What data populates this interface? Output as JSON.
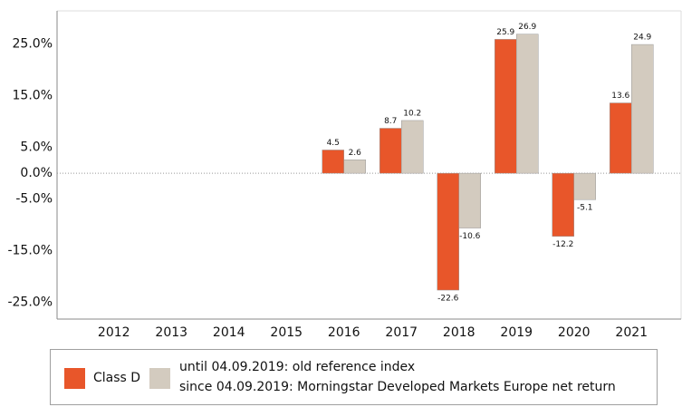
{
  "chart_data": {
    "type": "bar",
    "categories": [
      "2012",
      "2013",
      "2014",
      "2015",
      "2016",
      "2017",
      "2018",
      "2019",
      "2020",
      "2021"
    ],
    "series": [
      {
        "name": "Class D",
        "color": "#e8562a",
        "values": [
          null,
          null,
          null,
          null,
          4.5,
          8.7,
          -22.6,
          25.9,
          -12.2,
          13.6
        ]
      },
      {
        "name": "until 04.09.2019: old reference index\nsince 04.09.2019: Morningstar Developed Markets Europe net return",
        "color": "#d3cbbf",
        "values": [
          null,
          null,
          null,
          null,
          2.6,
          10.2,
          -10.6,
          26.9,
          -5.1,
          24.9
        ]
      }
    ],
    "ylim": [
      -28.2,
      31.4
    ],
    "yticks": [
      {
        "value": 25,
        "label": "25.0%"
      },
      {
        "value": 15,
        "label": "15.0%"
      },
      {
        "value": 5,
        "label": "5.0%"
      },
      {
        "value": 0,
        "label": "0.0%"
      },
      {
        "value": -5,
        "label": "-5.0%"
      },
      {
        "value": -15,
        "label": "-15.0%"
      },
      {
        "value": -25,
        "label": "-25.0%"
      }
    ],
    "grid": false,
    "zero_line": true,
    "legend": "bottom"
  }
}
